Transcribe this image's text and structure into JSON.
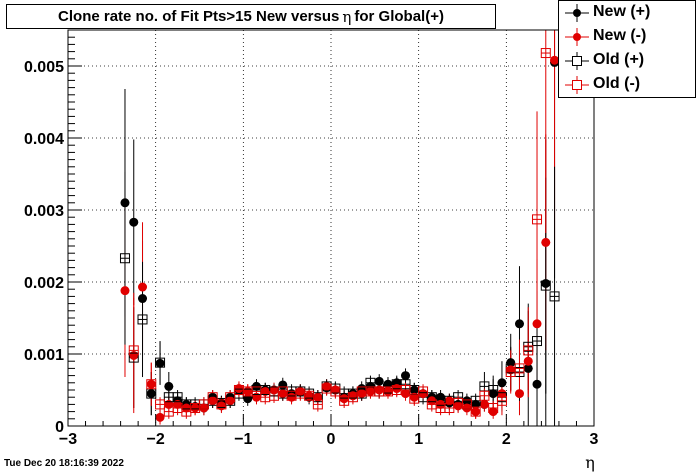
{
  "chart_data": {
    "type": "scatter",
    "title": "Clone rate no. of Fit Pts>15 New versus  η for Global(+)",
    "title_text": "Clone rate no. of Fit Pts>15 New versus",
    "title_symbol": "η",
    "title_suffix": "for Global(+)",
    "xlabel": "η",
    "ylabel": "",
    "xlim": [
      -3,
      3
    ],
    "ylim": [
      0,
      0.0055
    ],
    "x_ticks": [
      -3,
      -2,
      -1,
      0,
      1,
      2,
      3
    ],
    "x_tick_labels": [
      "−3",
      "−2",
      "−1",
      "0",
      "1",
      "2",
      "3"
    ],
    "y_ticks": [
      0,
      0.001,
      0.002,
      0.003,
      0.004,
      0.005
    ],
    "y_tick_labels": [
      "0",
      "0.001",
      "0.002",
      "0.003",
      "0.004",
      "0.005"
    ],
    "grid": true,
    "legend_position": "top-right",
    "timestamp": "Tue Dec 20 18:16:39 2022",
    "series": [
      {
        "name": "New (+)",
        "color": "#000000",
        "marker": "filled-circle",
        "x": [
          -2.35,
          -2.25,
          -2.15,
          -2.05,
          -1.95,
          -1.85,
          -1.75,
          -1.65,
          -1.55,
          -1.45,
          -1.35,
          -1.25,
          -1.15,
          -1.05,
          -0.95,
          -0.85,
          -0.75,
          -0.65,
          -0.55,
          -0.45,
          -0.35,
          -0.25,
          -0.15,
          -0.05,
          0.05,
          0.15,
          0.25,
          0.35,
          0.45,
          0.55,
          0.65,
          0.75,
          0.85,
          0.95,
          1.05,
          1.15,
          1.25,
          1.35,
          1.45,
          1.55,
          1.65,
          1.75,
          1.85,
          1.95,
          2.05,
          2.15,
          2.25,
          2.35,
          2.45,
          2.55
        ],
        "y": [
          0.0031,
          0.00283,
          0.00177,
          0.00045,
          0.00087,
          0.00055,
          0.00035,
          0.0003,
          0.00027,
          0.00025,
          0.0004,
          0.00032,
          0.0004,
          0.0005,
          0.00038,
          0.00055,
          0.0005,
          0.0005,
          0.00057,
          0.00045,
          0.00047,
          0.0004,
          0.0004,
          0.00053,
          0.0005,
          0.0004,
          0.00045,
          0.00052,
          0.00055,
          0.00062,
          0.00058,
          0.0006,
          0.0007,
          0.0005,
          0.00045,
          0.0004,
          0.0004,
          0.00032,
          0.0003,
          0.00035,
          0.0003,
          0.0003,
          0.00045,
          0.0006,
          0.00088,
          0.00142,
          0.0008,
          0.00058,
          0.00198,
          0.00505
        ],
        "err": [
          0.00158,
          0.00115,
          0.0008,
          0.0003,
          0.0003,
          0.0002,
          0.0001,
          0.0001,
          0.0001,
          0.0001,
          0.0001,
          0.0001,
          0.0001,
          0.0001,
          0.0001,
          0.0001,
          0.0001,
          0.0001,
          0.0001,
          0.0001,
          0.0001,
          0.0001,
          0.0001,
          0.0001,
          0.0001,
          0.0001,
          0.0001,
          0.0001,
          0.0001,
          0.0001,
          0.0001,
          0.0001,
          0.0001,
          0.0001,
          0.0001,
          0.0001,
          0.0001,
          0.0001,
          0.0001,
          0.0001,
          0.0001,
          0.0001,
          0.0002,
          0.0003,
          0.0004,
          0.0008,
          0.0008,
          0.0006,
          0.002,
          0.003
        ]
      },
      {
        "name": "New (-)",
        "color": "#e00000",
        "marker": "filled-circle",
        "x": [
          -2.35,
          -2.25,
          -2.15,
          -2.05,
          -1.95,
          -1.85,
          -1.75,
          -1.65,
          -1.55,
          -1.45,
          -1.35,
          -1.25,
          -1.15,
          -1.05,
          -0.95,
          -0.85,
          -0.75,
          -0.65,
          -0.55,
          -0.45,
          -0.35,
          -0.25,
          -0.15,
          -0.05,
          0.05,
          0.15,
          0.25,
          0.35,
          0.45,
          0.55,
          0.65,
          0.75,
          0.85,
          0.95,
          1.05,
          1.15,
          1.25,
          1.35,
          1.45,
          1.55,
          1.65,
          1.75,
          1.85,
          1.95,
          2.05,
          2.15,
          2.25,
          2.35,
          2.45,
          2.55
        ],
        "y": [
          0.00188,
          0.00098,
          0.00193,
          0.00058,
          0.00012,
          0.0003,
          0.0003,
          0.00025,
          0.00025,
          0.00025,
          0.00035,
          0.00028,
          0.00035,
          0.00052,
          0.00048,
          0.0004,
          0.00048,
          0.0005,
          0.00045,
          0.0004,
          0.00048,
          0.00042,
          0.0004,
          0.00055,
          0.0005,
          0.00038,
          0.00042,
          0.00045,
          0.00048,
          0.0005,
          0.00048,
          0.00052,
          0.00045,
          0.0004,
          0.00045,
          0.00035,
          0.0003,
          0.00035,
          0.00028,
          0.00025,
          0.0002,
          0.0003,
          0.0002,
          0.00045,
          0.00078,
          0.00045,
          0.0009,
          0.00142,
          0.00255,
          0.00508
        ],
        "err": [
          0.0012,
          0.0008,
          0.0009,
          0.0003,
          0.0001,
          0.0001,
          0.0001,
          0.0001,
          0.0001,
          0.0001,
          0.0001,
          0.0001,
          0.0001,
          0.0001,
          0.0001,
          0.0001,
          0.0001,
          0.0001,
          0.0001,
          0.0001,
          0.0001,
          0.0001,
          0.0001,
          0.0001,
          0.0001,
          0.0001,
          0.0001,
          0.0001,
          0.0001,
          0.0001,
          0.0001,
          0.0001,
          0.0001,
          0.0001,
          0.0001,
          0.0001,
          0.0001,
          0.0001,
          0.0001,
          0.0001,
          0.0001,
          0.0001,
          0.0001,
          0.0002,
          0.0003,
          0.0003,
          0.0005,
          0.0009,
          0.0015,
          0.0025
        ]
      },
      {
        "name": "Old (+)",
        "color": "#000000",
        "marker": "open-square",
        "x": [
          -2.35,
          -2.25,
          -2.15,
          -2.05,
          -1.95,
          -1.85,
          -1.75,
          -1.65,
          -1.55,
          -1.45,
          -1.35,
          -1.25,
          -1.15,
          -1.05,
          -0.95,
          -0.85,
          -0.75,
          -0.65,
          -0.55,
          -0.45,
          -0.35,
          -0.25,
          -0.15,
          -0.05,
          0.05,
          0.15,
          0.25,
          0.35,
          0.45,
          0.55,
          0.65,
          0.75,
          0.85,
          0.95,
          1.05,
          1.15,
          1.25,
          1.35,
          1.45,
          1.55,
          1.65,
          1.75,
          1.85,
          1.95,
          2.05,
          2.15,
          2.25,
          2.35,
          2.45,
          2.55
        ],
        "y": [
          0.00233,
          0.00095,
          0.00148,
          0.00045,
          0.00088,
          0.0004,
          0.0004,
          0.0003,
          0.0003,
          0.0003,
          0.00035,
          0.00032,
          0.00035,
          0.00045,
          0.00045,
          0.0005,
          0.0005,
          0.00048,
          0.00045,
          0.00048,
          0.00048,
          0.00045,
          0.0004,
          0.00055,
          0.00052,
          0.00045,
          0.00045,
          0.00045,
          0.0006,
          0.00048,
          0.00052,
          0.00058,
          0.00058,
          0.0005,
          0.0004,
          0.0004,
          0.00035,
          0.00035,
          0.0004,
          0.0003,
          0.00035,
          0.00055,
          0.0005,
          0.0004,
          0.0008,
          0.00075,
          0.0011,
          0.00118,
          0.00195,
          0.0018
        ],
        "err": [
          0.0012,
          0.0007,
          0.0008,
          0.0003,
          0.0003,
          0.0001,
          0.0001,
          0.0001,
          0.0001,
          0.0001,
          0.0001,
          0.0001,
          0.0001,
          0.0001,
          0.0001,
          0.0001,
          0.0001,
          0.0001,
          0.0001,
          0.0001,
          0.0001,
          0.0001,
          0.0001,
          0.0001,
          0.0001,
          0.0001,
          0.0001,
          0.0001,
          0.0001,
          0.0001,
          0.0001,
          0.0001,
          0.0001,
          0.0001,
          0.0001,
          0.0001,
          0.0001,
          0.0001,
          0.0001,
          0.0001,
          0.0001,
          0.0002,
          0.0002,
          0.0002,
          0.0003,
          0.0004,
          0.0006,
          0.0007,
          0.0015,
          0.0018
        ]
      },
      {
        "name": "Old (-)",
        "color": "#e00000",
        "marker": "open-square",
        "x": [
          -2.35,
          -2.25,
          -2.15,
          -2.05,
          -1.95,
          -1.85,
          -1.75,
          -1.65,
          -1.55,
          -1.45,
          -1.35,
          -1.25,
          -1.15,
          -1.05,
          -0.95,
          -0.85,
          -0.75,
          -0.65,
          -0.55,
          -0.45,
          -0.35,
          -0.25,
          -0.15,
          -0.05,
          0.05,
          0.15,
          0.25,
          0.35,
          0.45,
          0.55,
          0.65,
          0.75,
          0.85,
          0.95,
          1.05,
          1.15,
          1.25,
          1.35,
          1.45,
          1.55,
          1.65,
          1.75,
          1.85,
          1.95,
          2.05,
          2.15,
          2.25,
          2.35,
          2.45,
          2.55
        ],
        "y": [
          0.0,
          0.00105,
          0.0,
          0.00058,
          0.0003,
          0.0002,
          0.00025,
          0.0002,
          0.00025,
          0.0003,
          0.0004,
          0.0003,
          0.0004,
          0.0005,
          0.00048,
          0.00048,
          0.0004,
          0.00042,
          0.00048,
          0.00042,
          0.00045,
          0.00042,
          0.0003,
          0.00052,
          0.00048,
          0.00035,
          0.0004,
          0.00048,
          0.00048,
          0.00048,
          0.00048,
          0.0005,
          0.0005,
          0.00038,
          0.00048,
          0.0003,
          0.00025,
          0.00025,
          0.00032,
          0.0003,
          0.0002,
          0.00042,
          0.00025,
          0.00035,
          0.00075,
          0.0008,
          0.00105,
          0.00287,
          0.00518,
          0.0
        ],
        "err": [
          0.0,
          0.0008,
          0.0,
          0.0003,
          0.0001,
          0.0001,
          0.0001,
          0.0001,
          0.0001,
          0.0001,
          0.0001,
          0.0001,
          0.0001,
          0.0001,
          0.0001,
          0.0001,
          0.0001,
          0.0001,
          0.0001,
          0.0001,
          0.0001,
          0.0001,
          0.0001,
          0.0001,
          0.0001,
          0.0001,
          0.0001,
          0.0001,
          0.0001,
          0.0001,
          0.0001,
          0.0001,
          0.0001,
          0.0001,
          0.0001,
          0.0001,
          0.0001,
          0.0001,
          0.0001,
          0.0001,
          0.0001,
          0.0001,
          0.0001,
          0.0002,
          0.0003,
          0.0004,
          0.0006,
          0.0015,
          0.0025,
          0.0
        ]
      }
    ]
  }
}
